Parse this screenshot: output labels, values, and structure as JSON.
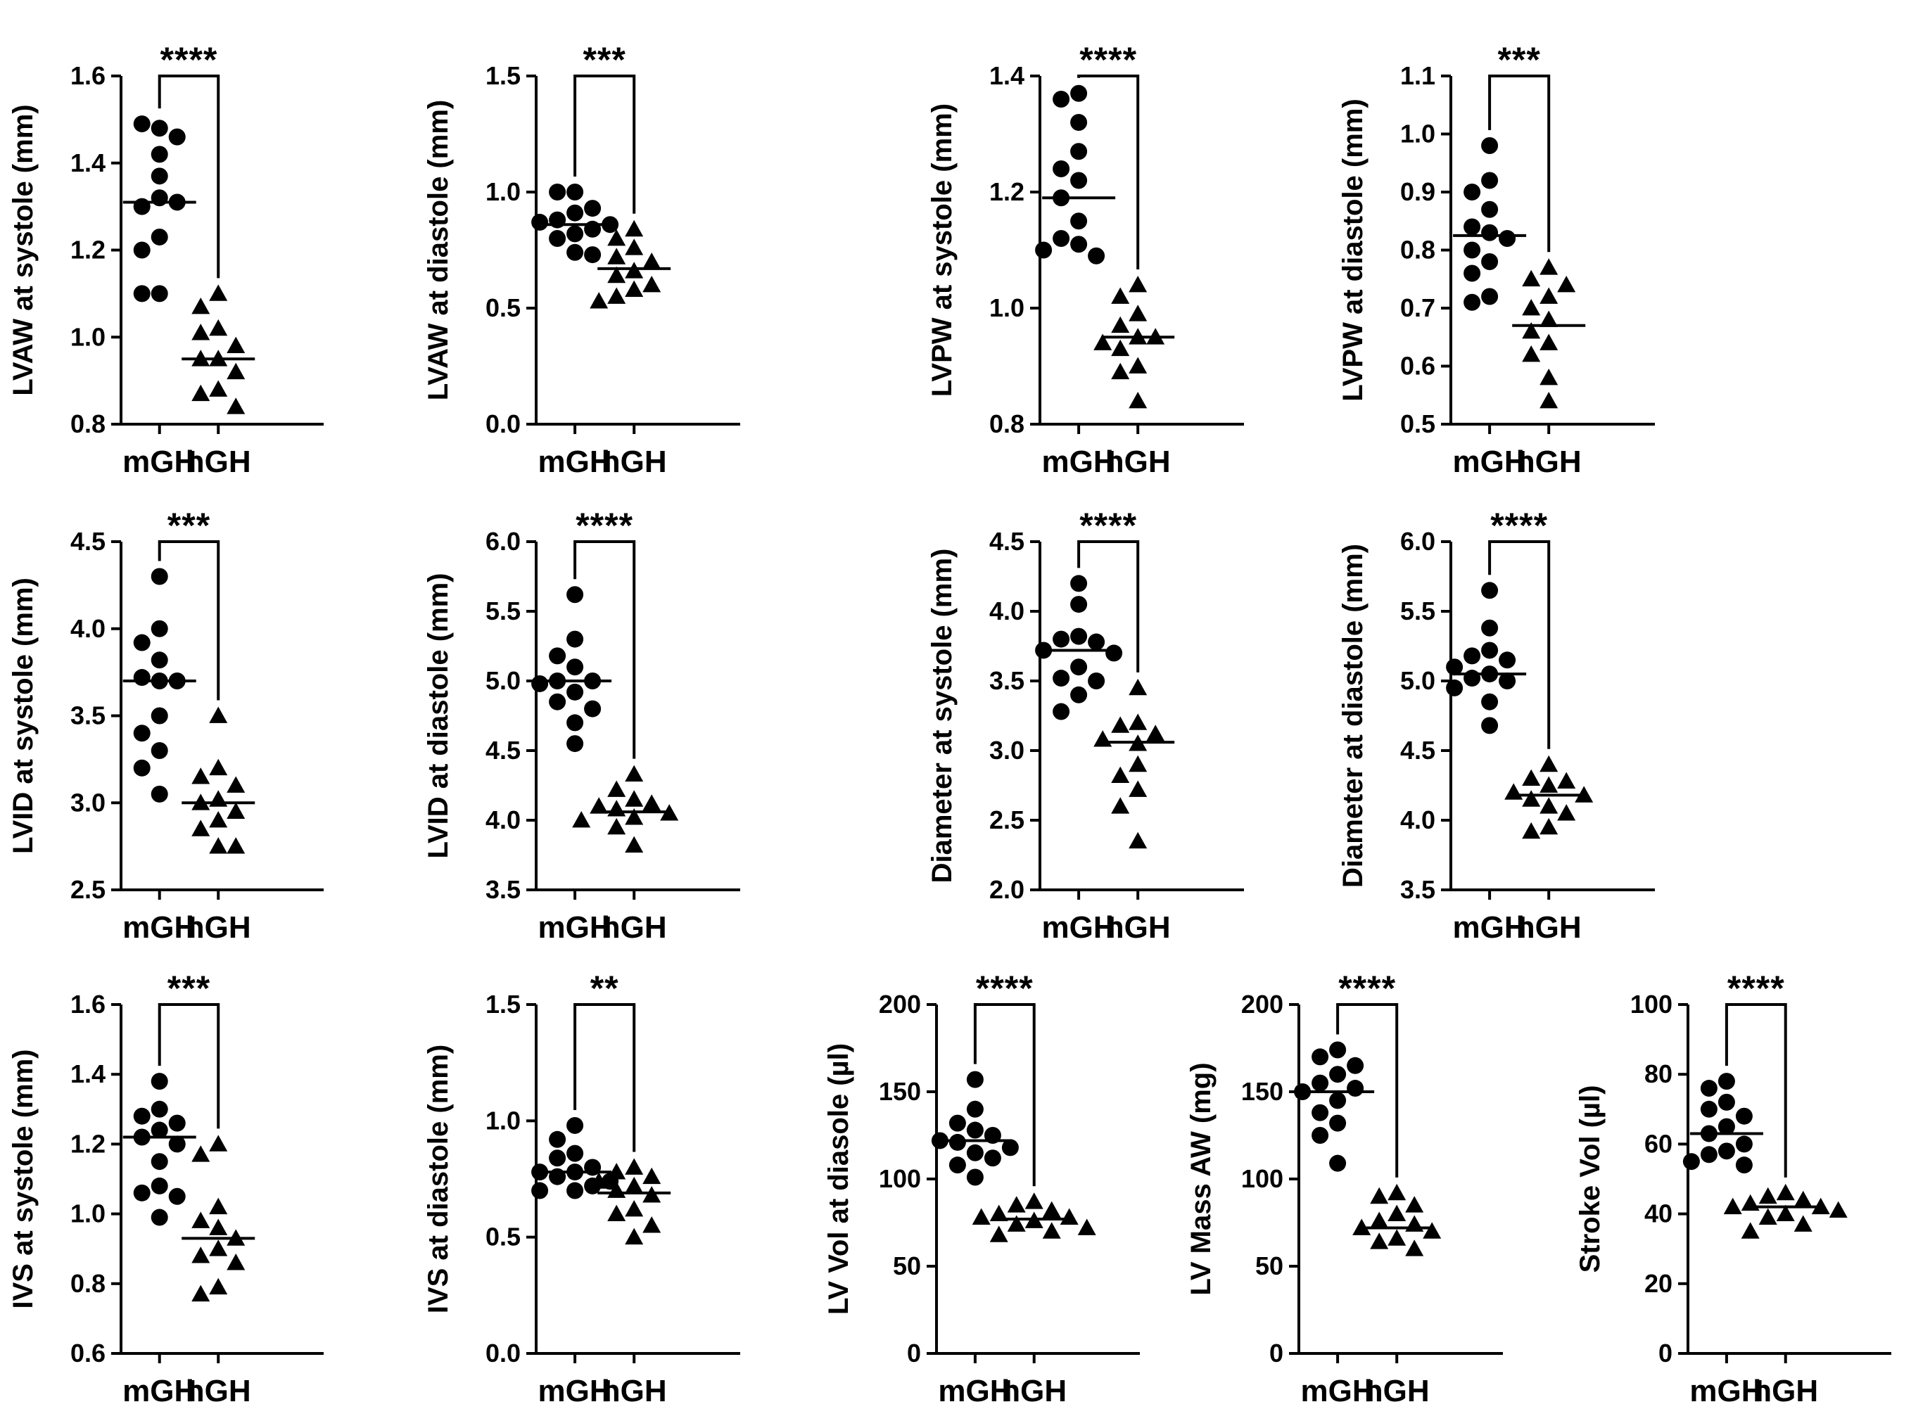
{
  "chart_data": [
    {
      "type": "scatter",
      "ylabel": "LVAW at systole (mm)",
      "ylim": [
        0.8,
        1.6
      ],
      "yticks": [
        0.8,
        1.0,
        1.2,
        1.4,
        1.6
      ],
      "tick_decimals": 1,
      "categories": [
        "mGH",
        "hGH"
      ],
      "series": [
        {
          "name": "mGH",
          "marker": "circle",
          "values": [
            1.48,
            1.49,
            1.46,
            1.42,
            1.37,
            1.32,
            1.3,
            1.31,
            1.23,
            1.2,
            1.1,
            1.1
          ],
          "mean": 1.31
        },
        {
          "name": "hGH",
          "marker": "triangle",
          "values": [
            1.1,
            1.07,
            1.02,
            1.01,
            0.98,
            0.95,
            0.95,
            0.92,
            0.88,
            0.87,
            0.84
          ],
          "mean": 0.95
        }
      ],
      "significance": "****"
    },
    {
      "type": "scatter",
      "ylabel": "LVAW at diastole (mm)",
      "ylim": [
        0.0,
        1.5
      ],
      "yticks": [
        0.0,
        0.5,
        1.0,
        1.5
      ],
      "tick_decimals": 1,
      "categories": [
        "mGH",
        "hGH"
      ],
      "series": [
        {
          "name": "mGH",
          "marker": "circle",
          "values": [
            1.0,
            1.0,
            0.93,
            0.91,
            0.88,
            0.87,
            0.86,
            0.84,
            0.82,
            0.8,
            0.74,
            0.73
          ],
          "mean": 0.86
        },
        {
          "name": "hGH",
          "marker": "triangle",
          "values": [
            0.84,
            0.8,
            0.76,
            0.72,
            0.7,
            0.66,
            0.64,
            0.6,
            0.58,
            0.55,
            0.53
          ],
          "mean": 0.67
        }
      ],
      "significance": "***"
    },
    {
      "type": "scatter",
      "ylabel": "LVPW at systole (mm)",
      "ylim": [
        0.8,
        1.4
      ],
      "yticks": [
        0.8,
        1.0,
        1.2,
        1.4
      ],
      "tick_decimals": 1,
      "categories": [
        "mGH",
        "hGH"
      ],
      "series": [
        {
          "name": "mGH",
          "marker": "circle",
          "values": [
            1.37,
            1.36,
            1.32,
            1.27,
            1.24,
            1.22,
            1.19,
            1.15,
            1.12,
            1.11,
            1.09,
            1.1
          ],
          "mean": 1.19
        },
        {
          "name": "hGH",
          "marker": "triangle",
          "values": [
            1.04,
            1.02,
            0.99,
            0.97,
            0.95,
            0.95,
            0.94,
            0.93,
            0.9,
            0.89,
            0.84
          ],
          "mean": 0.95
        }
      ],
      "significance": "****"
    },
    {
      "type": "scatter",
      "ylabel": "LVPW at diastole (mm)",
      "ylim": [
        0.5,
        1.1
      ],
      "yticks": [
        0.5,
        0.6,
        0.7,
        0.8,
        0.9,
        1.0,
        1.1
      ],
      "tick_decimals": 1,
      "categories": [
        "mGH",
        "hGH"
      ],
      "series": [
        {
          "name": "mGH",
          "marker": "circle",
          "values": [
            0.98,
            0.92,
            0.9,
            0.87,
            0.84,
            0.83,
            0.82,
            0.8,
            0.78,
            0.76,
            0.72,
            0.71
          ],
          "mean": 0.825
        },
        {
          "name": "hGH",
          "marker": "triangle",
          "values": [
            0.77,
            0.75,
            0.74,
            0.72,
            0.7,
            0.68,
            0.66,
            0.64,
            0.62,
            0.58,
            0.54
          ],
          "mean": 0.67
        }
      ],
      "significance": "***"
    },
    {
      "type": "scatter",
      "ylabel": "LVID at systole (mm)",
      "ylim": [
        2.5,
        4.5
      ],
      "yticks": [
        2.5,
        3.0,
        3.5,
        4.0,
        4.5
      ],
      "tick_decimals": 1,
      "categories": [
        "mGH",
        "hGH"
      ],
      "series": [
        {
          "name": "mGH",
          "marker": "circle",
          "values": [
            4.3,
            4.0,
            3.92,
            3.82,
            3.72,
            3.7,
            3.7,
            3.5,
            3.4,
            3.3,
            3.2,
            3.05
          ],
          "mean": 3.7
        },
        {
          "name": "hGH",
          "marker": "triangle",
          "values": [
            3.5,
            3.2,
            3.15,
            3.1,
            3.02,
            3.0,
            2.95,
            2.9,
            2.85,
            2.75,
            2.75
          ],
          "mean": 3.0
        }
      ],
      "significance": "***"
    },
    {
      "type": "scatter",
      "ylabel": "LVID at diastole (mm)",
      "ylim": [
        3.5,
        6.0
      ],
      "yticks": [
        3.5,
        4.0,
        4.5,
        5.0,
        5.5,
        6.0
      ],
      "tick_decimals": 1,
      "categories": [
        "mGH",
        "hGH"
      ],
      "series": [
        {
          "name": "mGH",
          "marker": "circle",
          "values": [
            5.62,
            5.3,
            5.18,
            5.1,
            5.0,
            5.0,
            4.98,
            4.92,
            4.85,
            4.8,
            4.7,
            4.55
          ],
          "mean": 5.0
        },
        {
          "name": "hGH",
          "marker": "triangle",
          "values": [
            4.33,
            4.22,
            4.15,
            4.12,
            4.1,
            4.08,
            4.05,
            4.02,
            4.0,
            3.95,
            3.82
          ],
          "mean": 4.06
        }
      ],
      "significance": "****"
    },
    {
      "type": "scatter",
      "ylabel": "Diameter at systole (mm)",
      "ylim": [
        2.0,
        4.5
      ],
      "yticks": [
        2.0,
        2.5,
        3.0,
        3.5,
        4.0,
        4.5
      ],
      "tick_decimals": 1,
      "categories": [
        "mGH",
        "hGH"
      ],
      "series": [
        {
          "name": "mGH",
          "marker": "circle",
          "values": [
            4.2,
            4.05,
            3.82,
            3.8,
            3.78,
            3.72,
            3.7,
            3.6,
            3.52,
            3.5,
            3.4,
            3.28
          ],
          "mean": 3.72
        },
        {
          "name": "hGH",
          "marker": "triangle",
          "values": [
            3.45,
            3.2,
            3.18,
            3.12,
            3.08,
            3.05,
            2.9,
            2.82,
            2.72,
            2.6,
            2.35
          ],
          "mean": 3.06
        }
      ],
      "significance": "****"
    },
    {
      "type": "scatter",
      "ylabel": "Diameter at diastole (mm)",
      "ylim": [
        3.5,
        6.0
      ],
      "yticks": [
        3.5,
        4.0,
        4.5,
        5.0,
        5.5,
        6.0
      ],
      "tick_decimals": 1,
      "categories": [
        "mGH",
        "hGH"
      ],
      "series": [
        {
          "name": "mGH",
          "marker": "circle",
          "values": [
            5.65,
            5.38,
            5.22,
            5.18,
            5.15,
            5.1,
            5.05,
            5.02,
            5.0,
            4.95,
            4.85,
            4.68
          ],
          "mean": 5.05
        },
        {
          "name": "hGH",
          "marker": "triangle",
          "values": [
            4.4,
            4.3,
            4.28,
            4.25,
            4.2,
            4.18,
            4.15,
            4.1,
            4.05,
            3.95,
            3.92
          ],
          "mean": 4.18
        }
      ],
      "significance": "****"
    },
    {
      "type": "scatter",
      "ylabel": "IVS at systole (mm)",
      "ylim": [
        0.6,
        1.6
      ],
      "yticks": [
        0.6,
        0.8,
        1.0,
        1.2,
        1.4,
        1.6
      ],
      "tick_decimals": 1,
      "categories": [
        "mGH",
        "hGH"
      ],
      "series": [
        {
          "name": "mGH",
          "marker": "circle",
          "values": [
            1.38,
            1.3,
            1.28,
            1.26,
            1.24,
            1.22,
            1.2,
            1.15,
            1.08,
            1.06,
            1.05,
            0.99
          ],
          "mean": 1.22
        },
        {
          "name": "hGH",
          "marker": "triangle",
          "values": [
            1.2,
            1.17,
            1.02,
            0.98,
            0.96,
            0.93,
            0.9,
            0.88,
            0.86,
            0.79,
            0.77
          ],
          "mean": 0.93
        }
      ],
      "significance": "***"
    },
    {
      "type": "scatter",
      "ylabel": "IVS at diastole (mm)",
      "ylim": [
        0.0,
        1.5
      ],
      "yticks": [
        0.0,
        0.5,
        1.0,
        1.5
      ],
      "tick_decimals": 1,
      "categories": [
        "mGH",
        "hGH"
      ],
      "series": [
        {
          "name": "mGH",
          "marker": "circle",
          "values": [
            0.98,
            0.92,
            0.86,
            0.84,
            0.8,
            0.78,
            0.78,
            0.76,
            0.74,
            0.72,
            0.7,
            0.7
          ],
          "mean": 0.78
        },
        {
          "name": "hGH",
          "marker": "triangle",
          "values": [
            0.8,
            0.78,
            0.76,
            0.74,
            0.72,
            0.7,
            0.68,
            0.62,
            0.6,
            0.55,
            0.5
          ],
          "mean": 0.69
        }
      ],
      "significance": "**"
    },
    {
      "type": "scatter",
      "ylabel": "LV Vol at diasole (µl)",
      "ylim": [
        0,
        200
      ],
      "yticks": [
        0,
        50,
        100,
        150,
        200
      ],
      "tick_decimals": 0,
      "categories": [
        "mGH",
        "hGH"
      ],
      "series": [
        {
          "name": "mGH",
          "marker": "circle",
          "values": [
            157,
            140,
            132,
            128,
            125,
            122,
            121,
            118,
            115,
            112,
            108,
            101
          ],
          "mean": 122
        },
        {
          "name": "hGH",
          "marker": "triangle",
          "values": [
            87,
            85,
            82,
            80,
            78,
            78,
            76,
            74,
            72,
            70,
            68
          ],
          "mean": 77
        }
      ],
      "significance": "****"
    },
    {
      "type": "scatter",
      "ylabel": "LV Mass AW (mg)",
      "ylim": [
        0,
        200
      ],
      "yticks": [
        0,
        50,
        100,
        150,
        200
      ],
      "tick_decimals": 0,
      "categories": [
        "mGH",
        "hGH"
      ],
      "series": [
        {
          "name": "mGH",
          "marker": "circle",
          "values": [
            174,
            170,
            165,
            160,
            155,
            152,
            150,
            145,
            138,
            132,
            125,
            109
          ],
          "mean": 150
        },
        {
          "name": "hGH",
          "marker": "triangle",
          "values": [
            92,
            90,
            85,
            80,
            76,
            74,
            72,
            70,
            66,
            64,
            60
          ],
          "mean": 72
        }
      ],
      "significance": "****"
    },
    {
      "type": "scatter",
      "ylabel": "Stroke Vol (µl)",
      "ylim": [
        0,
        100
      ],
      "yticks": [
        0,
        20,
        40,
        60,
        80,
        100
      ],
      "tick_decimals": 0,
      "categories": [
        "mGH",
        "hGH"
      ],
      "series": [
        {
          "name": "mGH",
          "marker": "circle",
          "values": [
            78,
            76,
            72,
            70,
            68,
            65,
            63,
            60,
            58,
            57,
            55,
            54
          ],
          "mean": 63
        },
        {
          "name": "hGH",
          "marker": "triangle",
          "values": [
            46,
            45,
            44,
            43,
            42,
            42,
            41,
            40,
            39,
            37,
            35
          ],
          "mean": 42
        }
      ],
      "significance": "****"
    }
  ]
}
